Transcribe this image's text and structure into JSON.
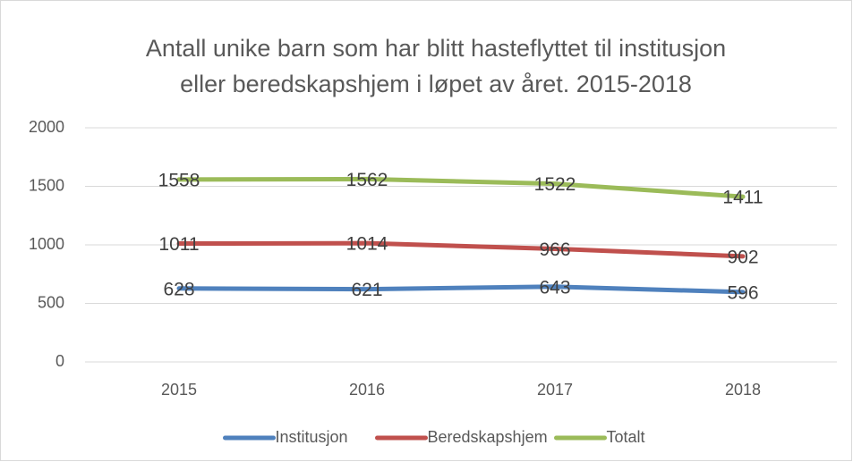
{
  "chart_data": {
    "type": "line",
    "title": [
      "Antall unike barn som har blitt hasteflyttet til institusjon",
      "eller beredskapshjem i løpet av året. 2015-2018"
    ],
    "categories": [
      "2015",
      "2016",
      "2017",
      "2018"
    ],
    "series": [
      {
        "name": "Institusjon",
        "color": "#4f81bd",
        "values": [
          628,
          621,
          643,
          596
        ]
      },
      {
        "name": "Beredskapshjem",
        "color": "#c0504d",
        "values": [
          1011,
          1014,
          966,
          902
        ]
      },
      {
        "name": "Totalt",
        "color": "#9bbb59",
        "values": [
          1558,
          1562,
          1522,
          1411
        ]
      }
    ],
    "ylim": [
      0,
      2000
    ],
    "yticks": [
      0,
      500,
      1000,
      1500,
      2000
    ],
    "grid": true,
    "legend": "bottom"
  }
}
